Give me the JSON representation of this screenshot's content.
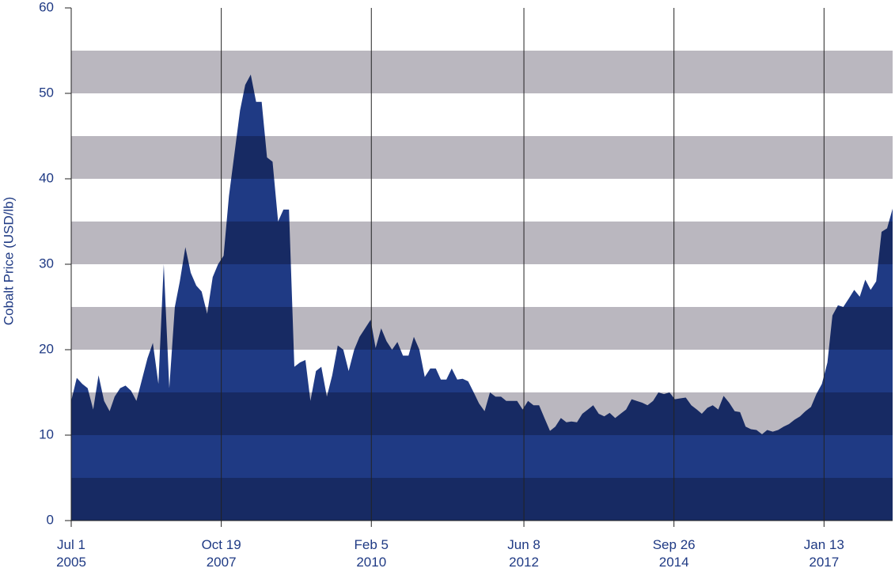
{
  "chart_data": {
    "type": "area",
    "ylabel": "Cobalt Price (USD/lb)",
    "color": "#1f3a84",
    "band_color": "#bab7bf",
    "grid_bands": true,
    "ylim": [
      0,
      60
    ],
    "yticks": [
      0,
      10,
      20,
      30,
      40,
      50,
      60
    ],
    "xlim": [
      "2005-07-01",
      "2018-02-01"
    ],
    "xticks": [
      {
        "value": "2005-07-01",
        "label": "Jul 1\n2005"
      },
      {
        "value": "2007-10-19",
        "label": "Oct 19\n2007"
      },
      {
        "value": "2010-02-05",
        "label": "Feb 5\n2010"
      },
      {
        "value": "2012-06-08",
        "label": "Jun 8\n2012"
      },
      {
        "value": "2014-09-26",
        "label": "Sep 26\n2014"
      },
      {
        "value": "2017-01-13",
        "label": "Jan 13\n2017"
      }
    ],
    "x": [
      "2005-07-01",
      "2005-08-01",
      "2005-09-01",
      "2005-10-01",
      "2005-11-01",
      "2005-12-01",
      "2006-01-01",
      "2006-02-01",
      "2006-03-01",
      "2006-04-01",
      "2006-05-01",
      "2006-06-01",
      "2006-07-01",
      "2006-08-01",
      "2006-09-01",
      "2006-10-01",
      "2006-11-01",
      "2006-12-01",
      "2007-01-01",
      "2007-02-01",
      "2007-03-01",
      "2007-04-01",
      "2007-05-01",
      "2007-06-01",
      "2007-07-01",
      "2007-08-01",
      "2007-09-01",
      "2007-10-01",
      "2007-11-01",
      "2007-12-01",
      "2008-01-01",
      "2008-02-01",
      "2008-03-01",
      "2008-04-01",
      "2008-05-01",
      "2008-06-01",
      "2008-07-01",
      "2008-08-01",
      "2008-09-01",
      "2008-10-01",
      "2008-11-01",
      "2008-12-01",
      "2009-01-01",
      "2009-02-01",
      "2009-03-01",
      "2009-04-01",
      "2009-05-01",
      "2009-06-01",
      "2009-07-01",
      "2009-08-01",
      "2009-09-01",
      "2009-10-01",
      "2009-11-01",
      "2009-12-01",
      "2010-01-01",
      "2010-02-01",
      "2010-03-01",
      "2010-04-01",
      "2010-05-01",
      "2010-06-01",
      "2010-07-01",
      "2010-08-01",
      "2010-09-01",
      "2010-10-01",
      "2010-11-01",
      "2010-12-01",
      "2011-01-01",
      "2011-02-01",
      "2011-03-01",
      "2011-04-01",
      "2011-05-01",
      "2011-06-01",
      "2011-07-01",
      "2011-08-01",
      "2011-09-01",
      "2011-10-01",
      "2011-11-01",
      "2011-12-01",
      "2012-01-01",
      "2012-02-01",
      "2012-03-01",
      "2012-04-01",
      "2012-05-01",
      "2012-06-01",
      "2012-07-01",
      "2012-08-01",
      "2012-09-01",
      "2012-10-01",
      "2012-11-01",
      "2012-12-01",
      "2013-01-01",
      "2013-02-01",
      "2013-03-01",
      "2013-04-01",
      "2013-05-01",
      "2013-06-01",
      "2013-07-01",
      "2013-08-01",
      "2013-09-01",
      "2013-10-01",
      "2013-11-01",
      "2013-12-01",
      "2014-01-01",
      "2014-02-01",
      "2014-03-01",
      "2014-04-01",
      "2014-05-01",
      "2014-06-01",
      "2014-07-01",
      "2014-08-01",
      "2014-09-01",
      "2014-10-01",
      "2014-11-01",
      "2014-12-01",
      "2015-01-01",
      "2015-02-01",
      "2015-03-01",
      "2015-04-01",
      "2015-05-01",
      "2015-06-01",
      "2015-07-01",
      "2015-08-01",
      "2015-09-01",
      "2015-10-01",
      "2015-11-01",
      "2015-12-01",
      "2016-01-01",
      "2016-02-01",
      "2016-03-01",
      "2016-04-01",
      "2016-05-01",
      "2016-06-01",
      "2016-07-01",
      "2016-08-01",
      "2016-09-01",
      "2016-10-01",
      "2016-11-01",
      "2016-12-01",
      "2017-01-01",
      "2017-02-01",
      "2017-03-01",
      "2017-04-01",
      "2017-05-01",
      "2017-06-01",
      "2017-07-01",
      "2017-08-01",
      "2017-09-01",
      "2017-10-01",
      "2017-11-01",
      "2017-12-01",
      "2018-01-01",
      "2018-02-01"
    ],
    "values": [
      14,
      16.7,
      16,
      15.5,
      13,
      17,
      14,
      12.8,
      14.5,
      15.5,
      15.8,
      15.2,
      14,
      16.5,
      19,
      20.8,
      16,
      30,
      15.5,
      25,
      28,
      32,
      29,
      27.5,
      26.8,
      24.2,
      28.5,
      30,
      31,
      38,
      43,
      48,
      51,
      52.2,
      49,
      49,
      42.5,
      42,
      35,
      36.4,
      36.4,
      18,
      18.5,
      18.8,
      14,
      17.5,
      18,
      14.5,
      17,
      20.5,
      20,
      17.5,
      20,
      21.5,
      22.5,
      23.5,
      20.2,
      22.5,
      21,
      20,
      20.9,
      19.3,
      19.3,
      21.5,
      20,
      16.8,
      17.8,
      17.8,
      16.5,
      16.5,
      17.8,
      16.5,
      16.6,
      16.3,
      15,
      13.7,
      12.8,
      15,
      14.5,
      14.5,
      14,
      14,
      14,
      13,
      14,
      13.5,
      13.5,
      12,
      10.5,
      11,
      12,
      11.5,
      11.6,
      11.5,
      12.5,
      13,
      13.5,
      12.5,
      12.2,
      12.6,
      12,
      12.5,
      13,
      14.2,
      14,
      13.8,
      13.5,
      14,
      15,
      14.8,
      15,
      14.2,
      14.3,
      14.4,
      13.5,
      13,
      12.5,
      13.2,
      13.5,
      13,
      14.6,
      13.8,
      12.8,
      12.7,
      11,
      10.7,
      10.6,
      10.1,
      10.6,
      10.4,
      10.6,
      11,
      11.3,
      11.8,
      12.2,
      12.8,
      13.3,
      14.8,
      16,
      18.5,
      24,
      25.2,
      25,
      26,
      27,
      26.2,
      28.2,
      27,
      28,
      33.8,
      34.2,
      36.5
    ]
  }
}
